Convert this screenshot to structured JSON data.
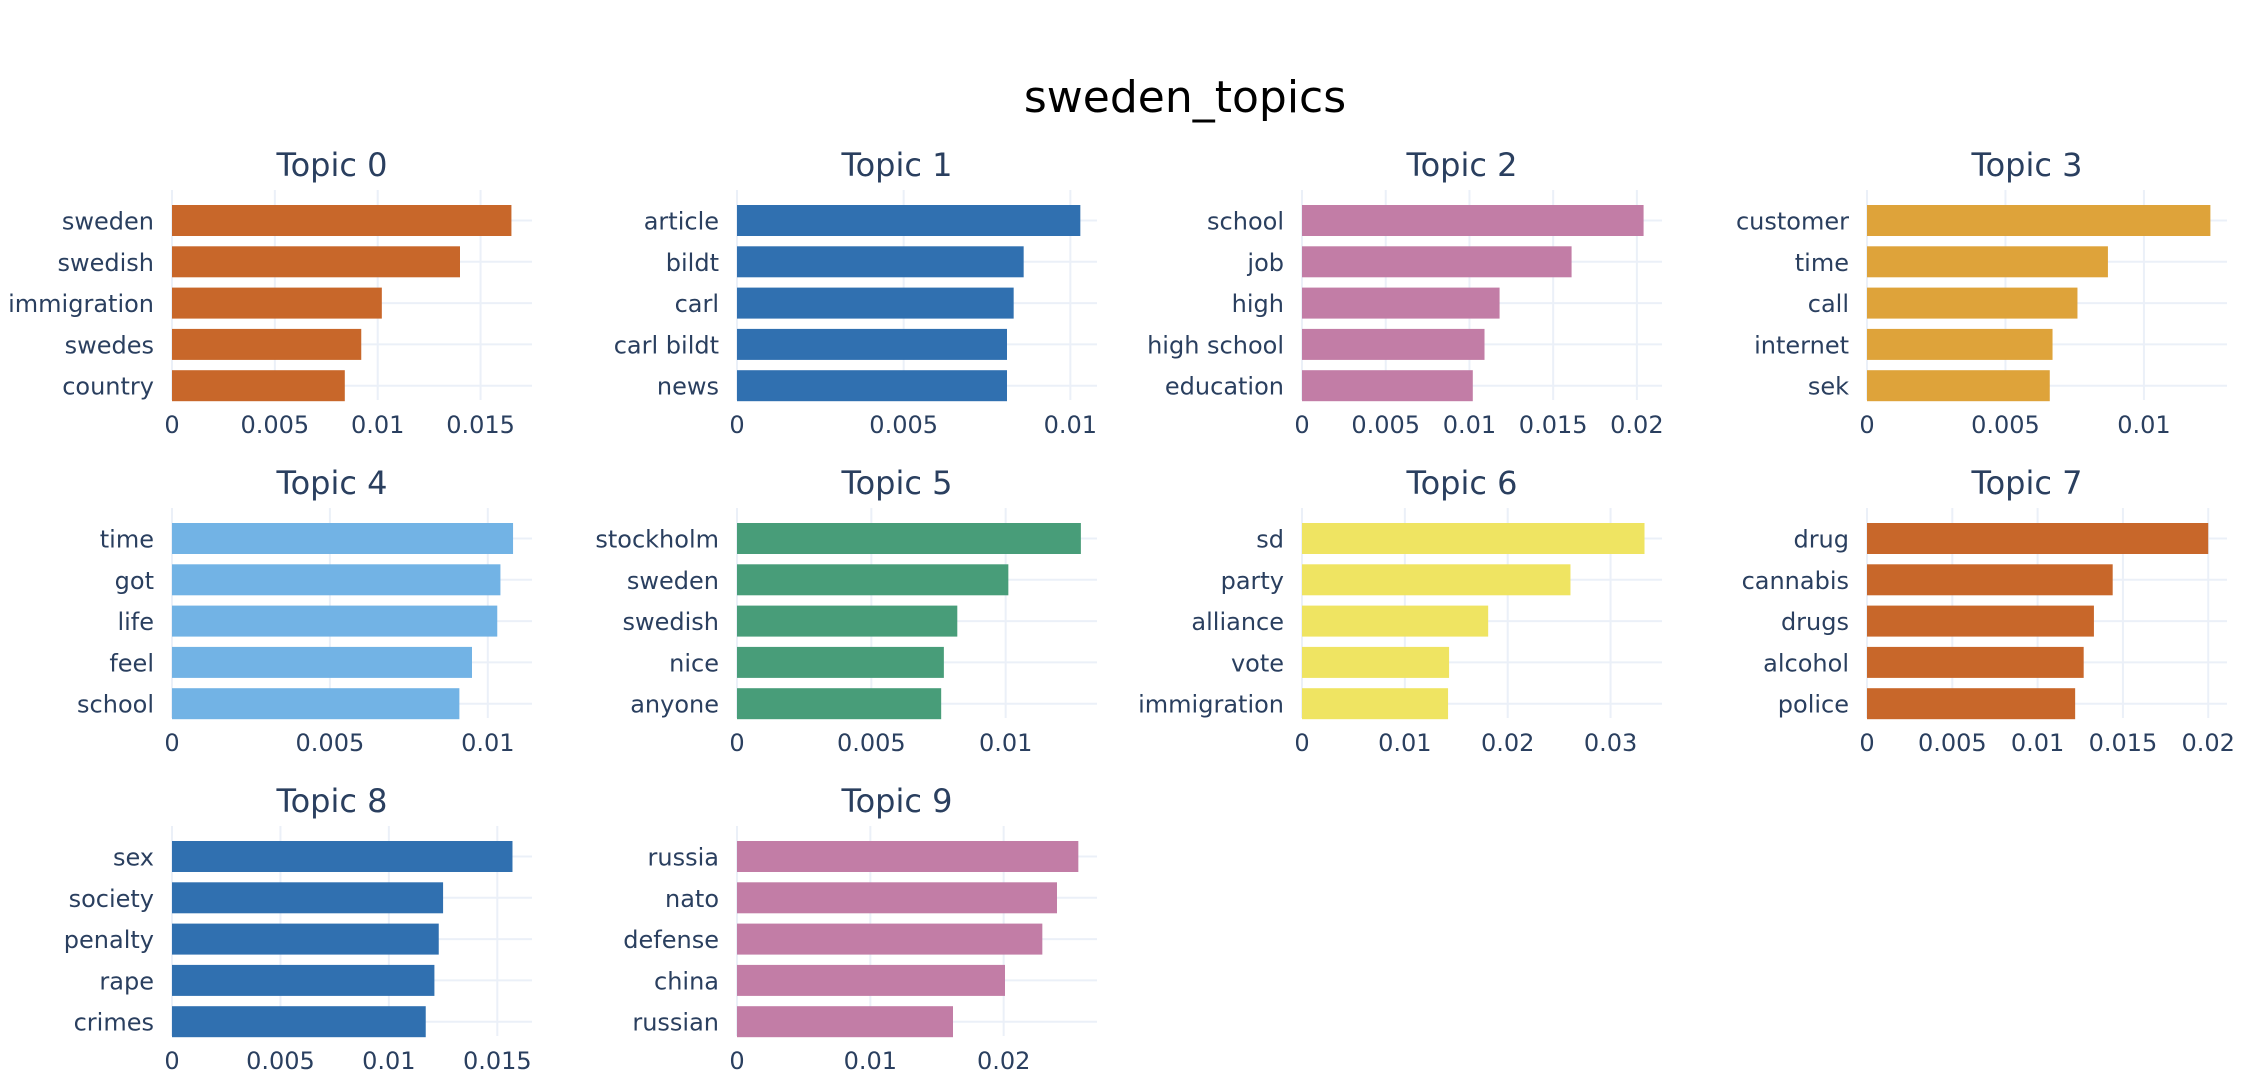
{
  "title": "sweden_topics",
  "colors": {
    "topic_0": "#C8672A",
    "topic_1": "#3070B0",
    "topic_2": "#C27DA6",
    "topic_3": "#DEA33A",
    "topic_4": "#72B3E5",
    "topic_5": "#489D79",
    "topic_6": "#EFE462",
    "topic_7": "#C8672A",
    "topic_8": "#3070B0",
    "topic_9": "#C27DA6",
    "text": "#2a3f5f",
    "title": "#000000",
    "grid": "#ebf0f8"
  },
  "chart_data": [
    {
      "type": "bar",
      "orientation": "horizontal",
      "title": "Topic 0",
      "categories": [
        "sweden",
        "swedish",
        "immigration",
        "swedes",
        "country"
      ],
      "values": [
        0.0165,
        0.014,
        0.0102,
        0.0092,
        0.0084
      ],
      "xlim": [
        0,
        0.0175
      ],
      "xticks": [
        0,
        0.005,
        0.01,
        0.015
      ],
      "xticklabels": [
        "0",
        "0.005",
        "0.01",
        "0.015"
      ]
    },
    {
      "type": "bar",
      "orientation": "horizontal",
      "title": "Topic 1",
      "categories": [
        "article",
        "bildt",
        "carl",
        "carl bildt",
        "news"
      ],
      "values": [
        0.0103,
        0.0086,
        0.0083,
        0.0081,
        0.0081
      ],
      "xlim": [
        0,
        0.0108
      ],
      "xticks": [
        0,
        0.005,
        0.01
      ],
      "xticklabels": [
        "0",
        "0.005",
        "0.01"
      ]
    },
    {
      "type": "bar",
      "orientation": "horizontal",
      "title": "Topic 2",
      "categories": [
        "school",
        "job",
        "high",
        "high school",
        "education"
      ],
      "values": [
        0.0204,
        0.0161,
        0.0118,
        0.0109,
        0.0102
      ],
      "xlim": [
        0,
        0.0215
      ],
      "xticks": [
        0,
        0.005,
        0.01,
        0.015,
        0.02
      ],
      "xticklabels": [
        "0",
        "0.005",
        "0.01",
        "0.015",
        "0.02"
      ]
    },
    {
      "type": "bar",
      "orientation": "horizontal",
      "title": "Topic 3",
      "categories": [
        "customer",
        "time",
        "call",
        "internet",
        "sek"
      ],
      "values": [
        0.0124,
        0.0087,
        0.0076,
        0.0067,
        0.0066
      ],
      "xlim": [
        0,
        0.013
      ],
      "xticks": [
        0,
        0.005,
        0.01
      ],
      "xticklabels": [
        "0",
        "0.005",
        "0.01"
      ]
    },
    {
      "type": "bar",
      "orientation": "horizontal",
      "title": "Topic 4",
      "categories": [
        "time",
        "got",
        "life",
        "feel",
        "school"
      ],
      "values": [
        0.0108,
        0.0104,
        0.0103,
        0.0095,
        0.0091
      ],
      "xlim": [
        0,
        0.0114
      ],
      "xticks": [
        0,
        0.005,
        0.01
      ],
      "xticklabels": [
        "0",
        "0.005",
        "0.01"
      ]
    },
    {
      "type": "bar",
      "orientation": "horizontal",
      "title": "Topic 5",
      "categories": [
        "stockholm",
        "sweden",
        "swedish",
        "nice",
        "anyone"
      ],
      "values": [
        0.0128,
        0.0101,
        0.0082,
        0.0077,
        0.0076
      ],
      "xlim": [
        0,
        0.0134
      ],
      "xticks": [
        0,
        0.005,
        0.01
      ],
      "xticklabels": [
        "0",
        "0.005",
        "0.01"
      ]
    },
    {
      "type": "bar",
      "orientation": "horizontal",
      "title": "Topic 6",
      "categories": [
        "sd",
        "party",
        "alliance",
        "vote",
        "immigration"
      ],
      "values": [
        0.0333,
        0.0261,
        0.0181,
        0.0143,
        0.0142
      ],
      "xlim": [
        0,
        0.035
      ],
      "xticks": [
        0,
        0.01,
        0.02,
        0.03
      ],
      "xticklabels": [
        "0",
        "0.01",
        "0.02",
        "0.03"
      ]
    },
    {
      "type": "bar",
      "orientation": "horizontal",
      "title": "Topic 7",
      "categories": [
        "drug",
        "cannabis",
        "drugs",
        "alcohol",
        "police"
      ],
      "values": [
        0.02,
        0.0144,
        0.0133,
        0.0127,
        0.0122
      ],
      "xlim": [
        0,
        0.0211
      ],
      "xticks": [
        0,
        0.005,
        0.01,
        0.015,
        0.02
      ],
      "xticklabels": [
        "0",
        "0.005",
        "0.01",
        "0.015",
        "0.02"
      ]
    },
    {
      "type": "bar",
      "orientation": "horizontal",
      "title": "Topic 8",
      "categories": [
        "sex",
        "society",
        "penalty",
        "rape",
        "crimes"
      ],
      "values": [
        0.0157,
        0.0125,
        0.0123,
        0.0121,
        0.0117
      ],
      "xlim": [
        0,
        0.0166
      ],
      "xticks": [
        0,
        0.005,
        0.01,
        0.015
      ],
      "xticklabels": [
        "0",
        "0.005",
        "0.01",
        "0.015"
      ]
    },
    {
      "type": "bar",
      "orientation": "horizontal",
      "title": "Topic 9",
      "categories": [
        "russia",
        "nato",
        "defense",
        "china",
        "russian"
      ],
      "values": [
        0.0256,
        0.024,
        0.0229,
        0.0201,
        0.0162
      ],
      "xlim": [
        0,
        0.027
      ],
      "xticks": [
        0,
        0.01,
        0.02
      ],
      "xticklabels": [
        "0",
        "0.01",
        "0.02"
      ]
    }
  ]
}
